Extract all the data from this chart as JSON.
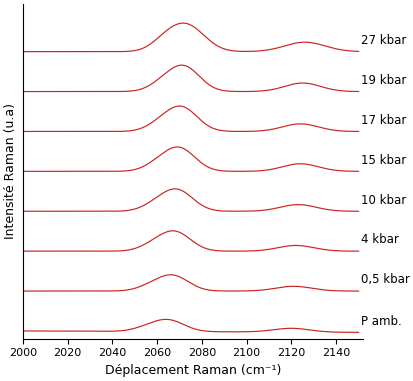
{
  "xmin": 2000,
  "xmax": 2150,
  "xticks": [
    2000,
    2020,
    2040,
    2060,
    2080,
    2100,
    2120,
    2140
  ],
  "xlabel": "Déplacement Raman (cm⁻¹)",
  "ylabel": "Intensité Raman (u.a)",
  "line_color": "#cc2222",
  "background_color": "#ffffff",
  "labels": [
    "P amb.",
    "0,5 kbar",
    "4 kbar",
    "10 kbar",
    "15 kbar",
    "17 kbar",
    "19 kbar",
    "27 kbar"
  ],
  "peak1_centers": [
    2065,
    2067,
    2068,
    2069,
    2070,
    2071,
    2072,
    2073
  ],
  "peak2_centers": [
    2120,
    2121,
    2122,
    2123,
    2124,
    2124,
    2125,
    2126
  ],
  "peak1_heights": [
    0.12,
    0.16,
    0.2,
    0.22,
    0.24,
    0.25,
    0.26,
    0.28
  ],
  "peak2_heights": [
    0.04,
    0.05,
    0.06,
    0.07,
    0.08,
    0.08,
    0.09,
    0.1
  ],
  "peak1_widths": [
    7,
    7,
    7,
    7,
    7,
    7,
    7,
    8
  ],
  "peak2_widths": [
    8,
    8,
    8,
    8,
    8,
    8,
    8,
    9
  ],
  "offsets": [
    0.0,
    0.42,
    0.84,
    1.26,
    1.68,
    2.1,
    2.52,
    2.94
  ],
  "label_fontsize": 8.5,
  "figsize": [
    4.14,
    3.81
  ],
  "dpi": 100
}
